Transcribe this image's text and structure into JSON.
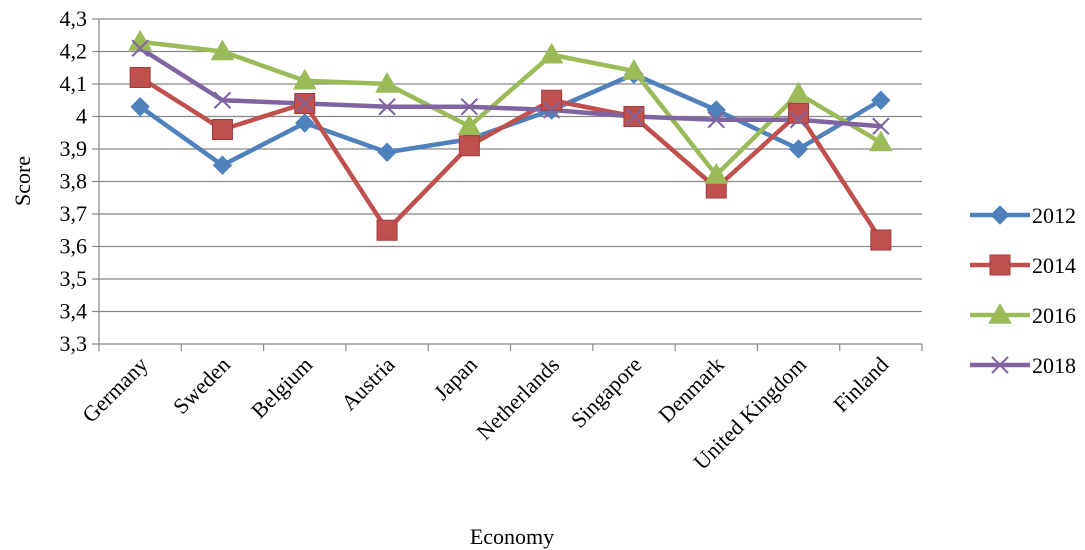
{
  "chart_data": {
    "type": "line",
    "xlabel": "Economy",
    "ylabel": "Score",
    "ylim": [
      3.3,
      4.3
    ],
    "ytick_step": 0.1,
    "decimal_separator": ",",
    "grid": "horizontal",
    "legend_position": "right",
    "categories": [
      "Germany",
      "Sweden",
      "Belgium",
      "Austria",
      "Japan",
      "Netherlands",
      "Singapore",
      "Denmark",
      "United Kingdom",
      "Finland"
    ],
    "series": [
      {
        "name": "2012",
        "color": "#4F81BD",
        "marker": "diamond",
        "values": [
          4.03,
          3.85,
          3.98,
          3.89,
          3.93,
          4.02,
          4.13,
          4.02,
          3.9,
          4.05
        ]
      },
      {
        "name": "2014",
        "color": "#C0504D",
        "marker": "square",
        "values": [
          4.12,
          3.96,
          4.04,
          3.65,
          3.91,
          4.05,
          4.0,
          3.78,
          4.01,
          3.62
        ]
      },
      {
        "name": "2016",
        "color": "#9BBB59",
        "marker": "triangle",
        "values": [
          4.23,
          4.2,
          4.11,
          4.1,
          3.97,
          4.19,
          4.14,
          3.82,
          4.07,
          3.92
        ]
      },
      {
        "name": "2018",
        "color": "#8064A2",
        "marker": "x",
        "values": [
          4.21,
          4.05,
          4.04,
          4.03,
          4.03,
          4.02,
          4.0,
          3.99,
          3.99,
          3.97
        ]
      }
    ]
  }
}
